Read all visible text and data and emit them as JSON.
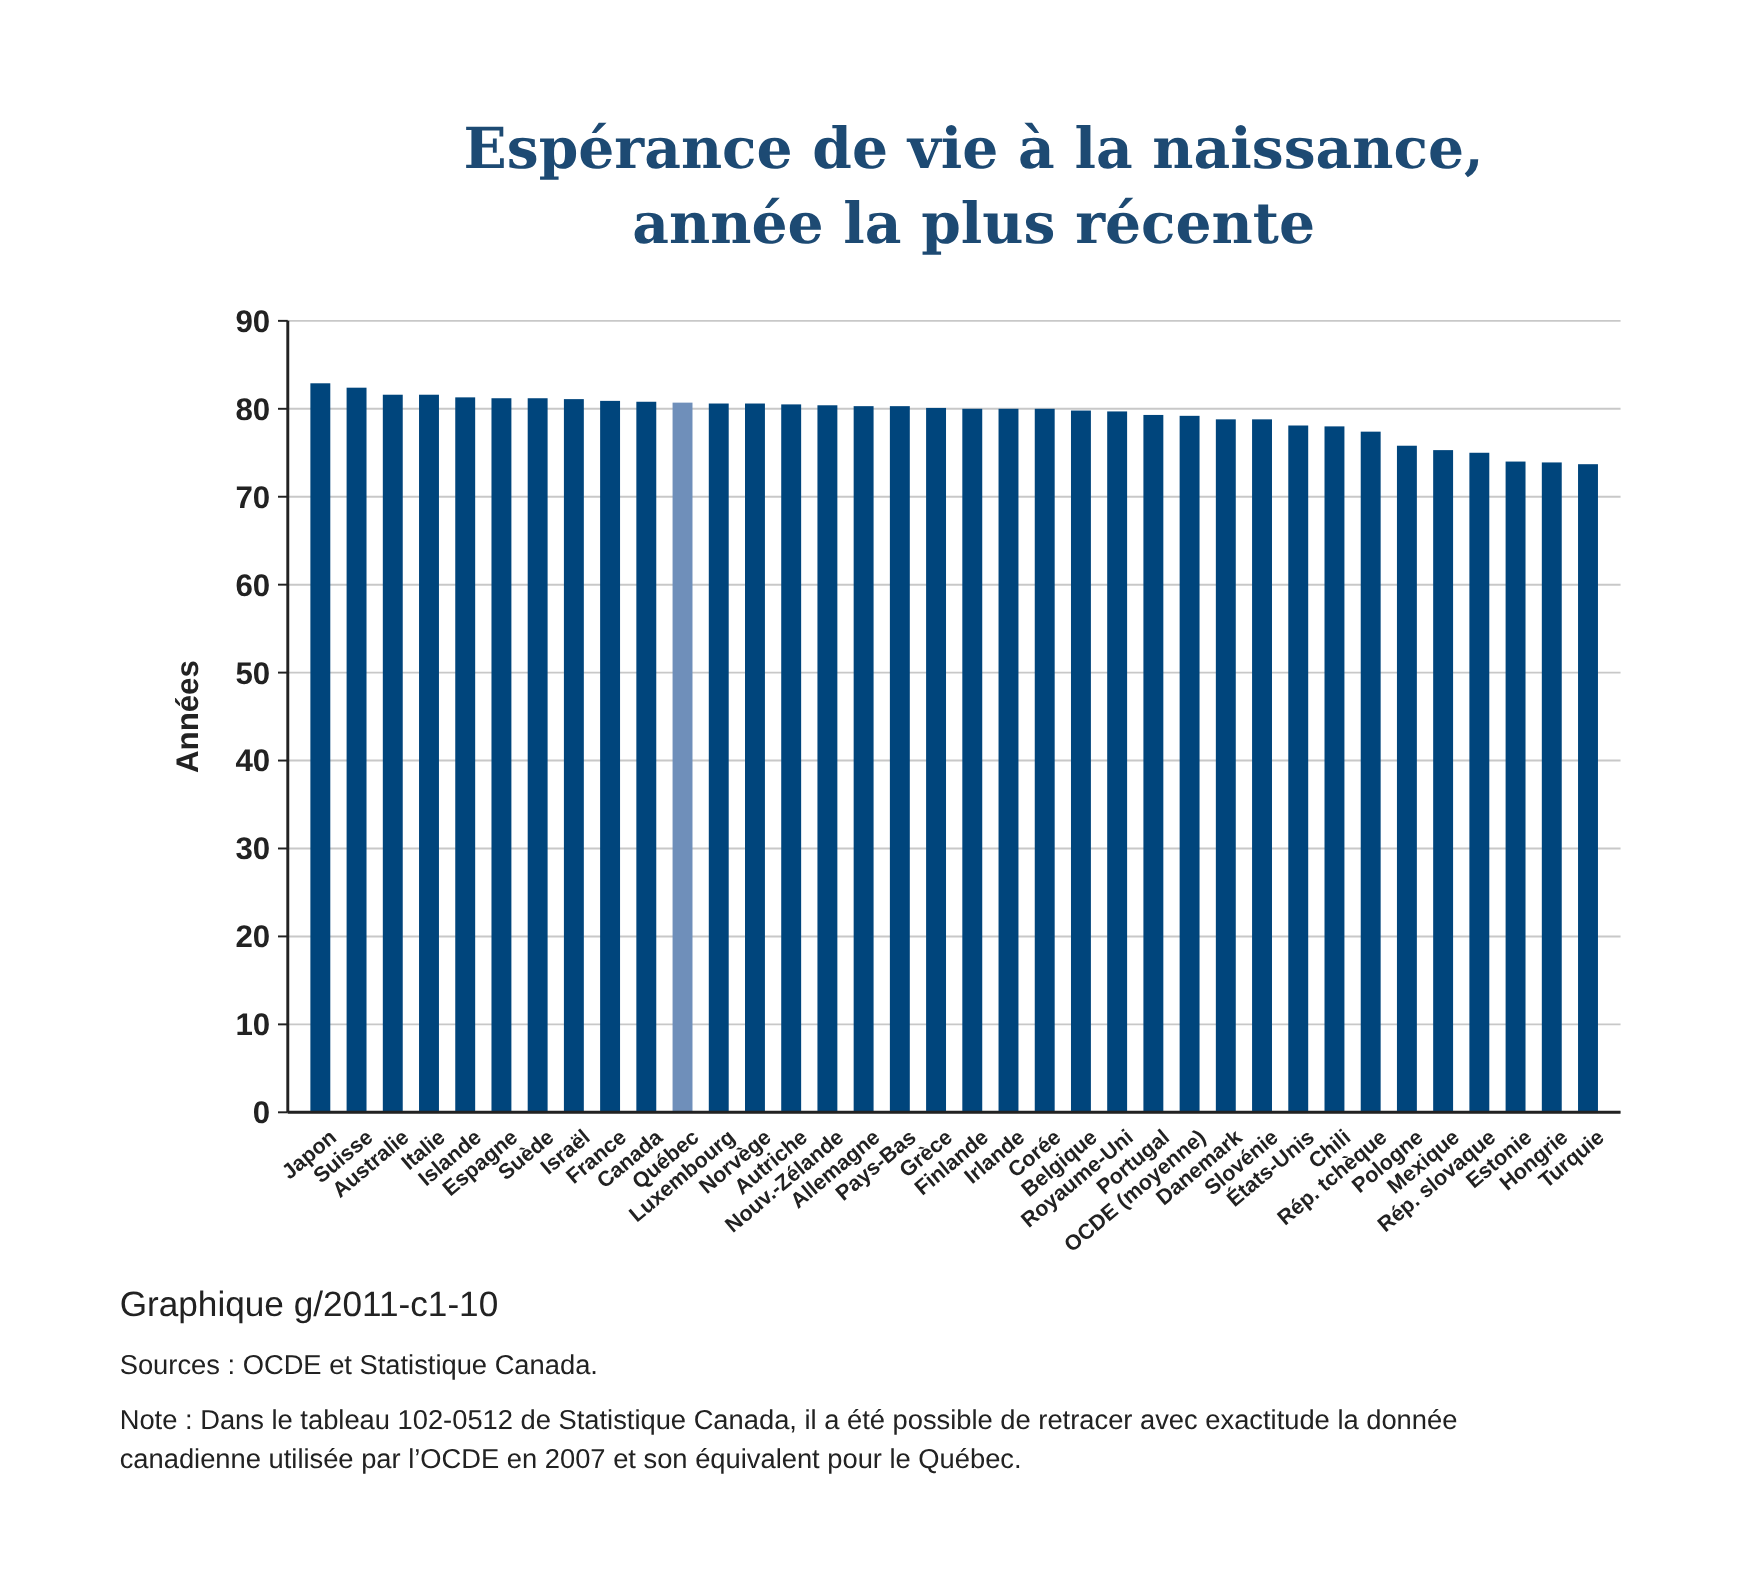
{
  "chart_data": {
    "type": "bar",
    "title": "Espérance de vie à la naissance,\nannée la plus récente",
    "ylabel": "Années",
    "categories": [
      "Japon",
      "Suisse",
      "Australie",
      "Italie",
      "Islande",
      "Espagne",
      "Suède",
      "Israël",
      "France",
      "Canada",
      "Québec",
      "Luxembourg",
      "Norvège",
      "Autriche",
      "Nouv.-Zélande",
      "Allemagne",
      "Pays-Bas",
      "Grèce",
      "Finlande",
      "Irlande",
      "Corée",
      "Belgique",
      "Royaume-Uni",
      "Portugal",
      "OCDE (moyenne)",
      "Danemark",
      "Slovénie",
      "États-Unis",
      "Chili",
      "Rép. tchèque",
      "Pologne",
      "Mexique",
      "Rép. slovaque",
      "Estonie",
      "Hongrie",
      "Turquie"
    ],
    "values": [
      82.9,
      82.4,
      81.6,
      81.6,
      81.3,
      81.2,
      81.2,
      81.1,
      80.9,
      80.8,
      80.7,
      80.6,
      80.6,
      80.5,
      80.4,
      80.3,
      80.3,
      80.1,
      80.0,
      80.0,
      80.0,
      79.8,
      79.7,
      79.3,
      79.2,
      78.8,
      78.8,
      78.1,
      78.0,
      77.4,
      75.8,
      75.3,
      75.0,
      74.0,
      73.9,
      73.7
    ],
    "colors": [
      "#00457c",
      "#00457c",
      "#00457c",
      "#00457c",
      "#00457c",
      "#00457c",
      "#00457c",
      "#00457c",
      "#00457c",
      "#00457c",
      "#6f8fba",
      "#00457c",
      "#00457c",
      "#00457c",
      "#00457c",
      "#00457c",
      "#00457c",
      "#00457c",
      "#00457c",
      "#00457c",
      "#00457c",
      "#00457c",
      "#00457c",
      "#00457c",
      "#00457c",
      "#00457c",
      "#00457c",
      "#00457c",
      "#00457c",
      "#00457c",
      "#00457c",
      "#00457c",
      "#00457c",
      "#00457c",
      "#00457c",
      "#00457c"
    ],
    "ylim": [
      0,
      90
    ],
    "yticks": [
      0,
      10,
      20,
      30,
      40,
      50,
      60,
      70,
      80,
      90
    ],
    "grid": "y",
    "annotations": [
      "Graphique g/2011-c1-10",
      "Sources : OCDE et Statistique Canada.",
      "Note : Dans le tableau 102-0512 de Statistique Canada, il a été possible de retracer avec exactitude la donnée canadienne utilisée par l’OCDE en 2007 et son équivalent pour le Québec."
    ]
  }
}
